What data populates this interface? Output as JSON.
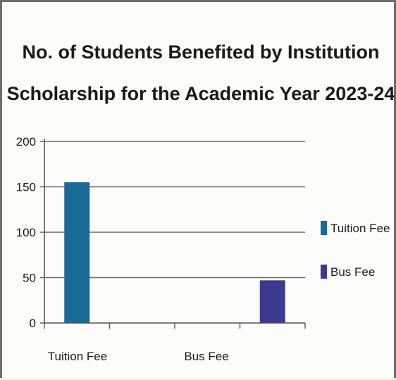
{
  "chart_data": {
    "type": "bar",
    "title_lines": [
      "No. of Students Benefited by Institution",
      "Scholarship for the Academic  Year 2023-24"
    ],
    "categories": [
      "Tuition Fee",
      "Bus Fee"
    ],
    "series": [
      {
        "name": "Tuition Fee",
        "color": "#1a6a96",
        "values": [
          155,
          null
        ]
      },
      {
        "name": "Bus Fee",
        "color": "#3b3a8f",
        "values": [
          null,
          47
        ]
      }
    ],
    "yticks": [
      "0",
      "50",
      "100",
      "150",
      "200"
    ],
    "ylim": [
      0,
      200
    ],
    "grid": true,
    "legend_position": "right"
  }
}
